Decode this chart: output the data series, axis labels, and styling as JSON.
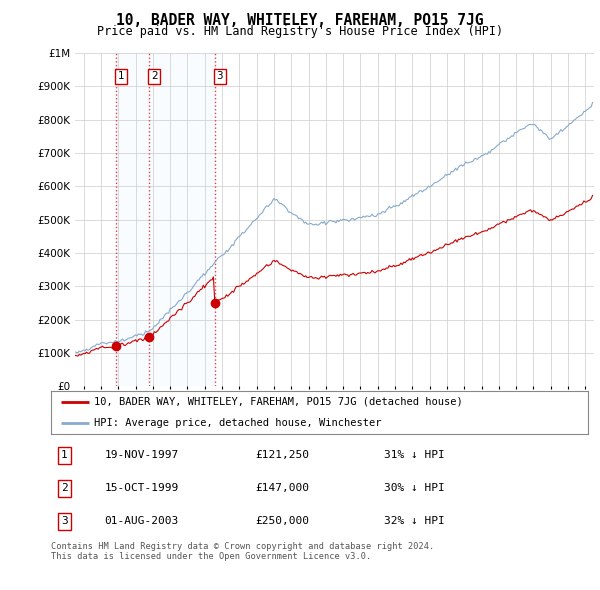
{
  "title": "10, BADER WAY, WHITELEY, FAREHAM, PO15 7JG",
  "subtitle": "Price paid vs. HM Land Registry's House Price Index (HPI)",
  "ylim": [
    0,
    1000000
  ],
  "yticks": [
    0,
    100000,
    200000,
    300000,
    400000,
    500000,
    600000,
    700000,
    800000,
    900000,
    1000000
  ],
  "ytick_labels": [
    "£0",
    "£100K",
    "£200K",
    "£300K",
    "£400K",
    "£500K",
    "£600K",
    "£700K",
    "£800K",
    "£900K",
    "£1M"
  ],
  "xlim_start": 1995.5,
  "xlim_end": 2025.5,
  "sales": [
    {
      "date": "19-NOV-1997",
      "year": 1997.88,
      "price": 121250,
      "label": "1"
    },
    {
      "date": "15-OCT-1999",
      "year": 1999.79,
      "price": 147000,
      "label": "2"
    },
    {
      "date": "01-AUG-2003",
      "year": 2003.58,
      "price": 250000,
      "label": "3"
    }
  ],
  "sale_color": "#cc0000",
  "hpi_color": "#88aacc",
  "vline_color": "#dd4444",
  "shade_color": "#ddeeff",
  "legend_sale_label": "10, BADER WAY, WHITELEY, FAREHAM, PO15 7JG (detached house)",
  "legend_hpi_label": "HPI: Average price, detached house, Winchester",
  "footer": "Contains HM Land Registry data © Crown copyright and database right 2024.\nThis data is licensed under the Open Government Licence v3.0.",
  "table_rows": [
    [
      "1",
      "19-NOV-1997",
      "£121,250",
      "31% ↓ HPI"
    ],
    [
      "2",
      "15-OCT-1999",
      "£147,000",
      "30% ↓ HPI"
    ],
    [
      "3",
      "01-AUG-2003",
      "£250,000",
      "32% ↓ HPI"
    ]
  ],
  "background_color": "#ffffff"
}
